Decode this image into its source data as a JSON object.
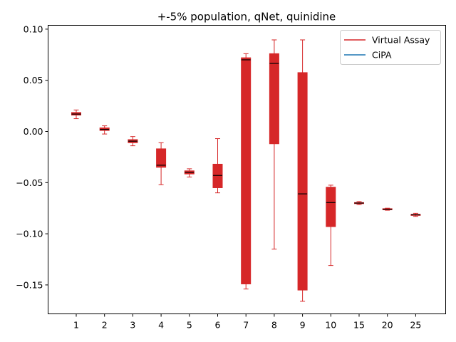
{
  "chart_data": {
    "type": "box",
    "title": "+-5% population, qNet, quinidine",
    "xlabel": "",
    "ylabel": "",
    "categories": [
      "1",
      "2",
      "3",
      "4",
      "5",
      "6",
      "7",
      "8",
      "9",
      "10",
      "15",
      "20",
      "25"
    ],
    "ylim": [
      -0.178,
      0.104
    ],
    "yticks": [
      0.1,
      0.05,
      0.0,
      -0.05,
      -0.1,
      -0.15
    ],
    "ytick_labels": [
      "0.10",
      "0.05",
      "0.00",
      "−0.05",
      "−0.10",
      "−0.15"
    ],
    "legend_position": "upper right",
    "series": [
      {
        "name": "Virtual Assay",
        "color": "#d62728",
        "boxes": [
          {
            "category": "1",
            "whisker_low": 0.0125,
            "q1": 0.016,
            "median": 0.017,
            "q3": 0.0185,
            "whisker_high": 0.021
          },
          {
            "category": "2",
            "whisker_low": -0.0025,
            "q1": 0.001,
            "median": 0.002,
            "q3": 0.0035,
            "whisker_high": 0.0055
          },
          {
            "category": "3",
            "whisker_low": -0.014,
            "q1": -0.011,
            "median": -0.0095,
            "q3": -0.008,
            "whisker_high": -0.005
          },
          {
            "category": "4",
            "whisker_low": -0.052,
            "q1": -0.035,
            "median": -0.033,
            "q3": -0.017,
            "whisker_high": -0.011
          },
          {
            "category": "5",
            "whisker_low": -0.0445,
            "q1": -0.0415,
            "median": -0.04,
            "q3": -0.0385,
            "whisker_high": -0.0365
          },
          {
            "category": "6",
            "whisker_low": -0.06,
            "q1": -0.055,
            "median": -0.043,
            "q3": -0.032,
            "whisker_high": -0.007
          },
          {
            "category": "7",
            "whisker_low": -0.154,
            "q1": -0.149,
            "median": 0.07,
            "q3": 0.072,
            "whisker_high": 0.076
          },
          {
            "category": "8",
            "whisker_low": -0.115,
            "q1": -0.012,
            "median": 0.0665,
            "q3": 0.076,
            "whisker_high": 0.0895
          },
          {
            "category": "9",
            "whisker_low": -0.166,
            "q1": -0.155,
            "median": -0.061,
            "q3": 0.0575,
            "whisker_high": 0.0895
          },
          {
            "category": "10",
            "whisker_low": -0.131,
            "q1": -0.093,
            "median": -0.0695,
            "q3": -0.0545,
            "whisker_high": -0.0525
          },
          {
            "category": "15",
            "whisker_low": -0.0715,
            "q1": -0.0705,
            "median": -0.07,
            "q3": -0.0695,
            "whisker_high": -0.0685
          },
          {
            "category": "20",
            "whisker_low": -0.077,
            "q1": -0.0765,
            "median": -0.076,
            "q3": -0.0755,
            "whisker_high": -0.075
          },
          {
            "category": "25",
            "whisker_low": -0.083,
            "q1": -0.082,
            "median": -0.0815,
            "q3": -0.081,
            "whisker_high": -0.08
          }
        ]
      },
      {
        "name": "CiPA",
        "color": "#1f77b4",
        "boxes": []
      }
    ],
    "median_color": "#000000"
  }
}
